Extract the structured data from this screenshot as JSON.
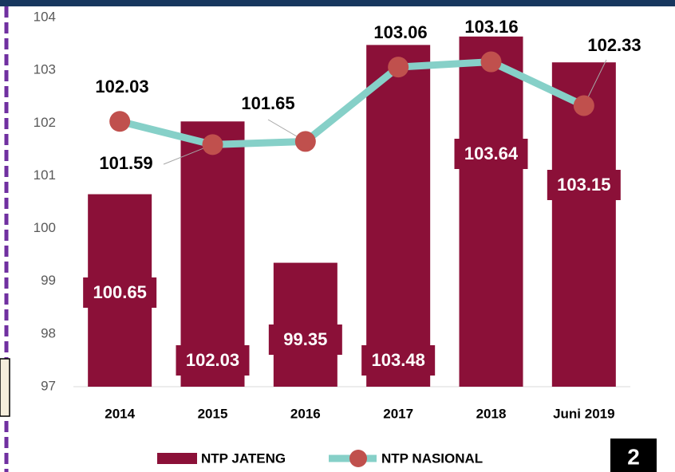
{
  "chart_data": {
    "type": "combo",
    "categories": [
      "2014",
      "2015",
      "2016",
      "2017",
      "2018",
      "Juni 2019"
    ],
    "series": [
      {
        "name": "NTP JATENG",
        "style": "bar",
        "color": "#8b1038",
        "values": [
          100.65,
          102.03,
          99.35,
          103.48,
          103.64,
          103.15
        ]
      },
      {
        "name": "NTP NASIONAL",
        "style": "line",
        "color": "#86d0c8",
        "marker_color": "#c0504d",
        "values": [
          102.03,
          101.59,
          101.65,
          103.06,
          103.16,
          102.33
        ]
      }
    ],
    "ylim": [
      97,
      104
    ],
    "yticks": [
      97,
      98,
      99,
      100,
      101,
      102,
      103,
      104
    ],
    "grid": false,
    "legend": "bottom"
  },
  "page_number": "2"
}
